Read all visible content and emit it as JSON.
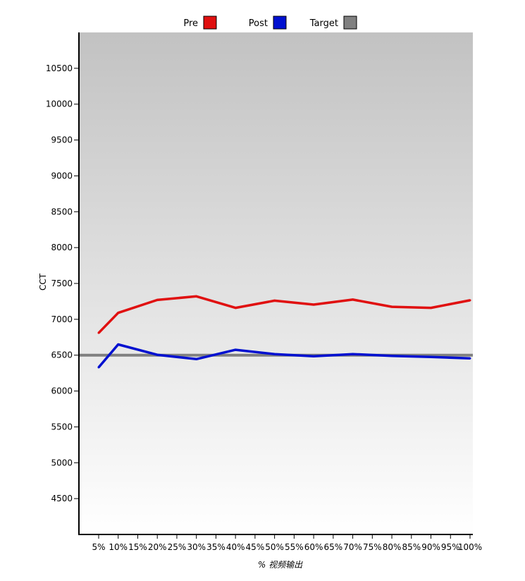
{
  "chart_data": {
    "type": "line",
    "xlabel": "% 视频输出",
    "ylabel": "CCT",
    "ylim": [
      4000,
      11000
    ],
    "yticks": [
      4500,
      5000,
      5500,
      6000,
      6500,
      7000,
      7500,
      8000,
      8500,
      9000,
      9500,
      10000,
      10500
    ],
    "x_categories": [
      "5%",
      "10%",
      "15%",
      "20%",
      "25%",
      "30%",
      "35%",
      "40%",
      "45%",
      "50%",
      "55%",
      "60%",
      "65%",
      "70%",
      "75%",
      "80%",
      "85%",
      "90%",
      "95%",
      "100%"
    ],
    "legend_position": "top",
    "series": [
      {
        "name": "Pre",
        "color": "#e01010",
        "points": [
          {
            "x": "5%",
            "y": 6810
          },
          {
            "x": "10%",
            "y": 7090
          },
          {
            "x": "20%",
            "y": 7270
          },
          {
            "x": "30%",
            "y": 7320
          },
          {
            "x": "40%",
            "y": 7160
          },
          {
            "x": "50%",
            "y": 7260
          },
          {
            "x": "60%",
            "y": 7205
          },
          {
            "x": "70%",
            "y": 7275
          },
          {
            "x": "80%",
            "y": 7175
          },
          {
            "x": "90%",
            "y": 7160
          },
          {
            "x": "100%",
            "y": 7265
          }
        ]
      },
      {
        "name": "Post",
        "color": "#0010d0",
        "points": [
          {
            "x": "5%",
            "y": 6330
          },
          {
            "x": "10%",
            "y": 6650
          },
          {
            "x": "20%",
            "y": 6505
          },
          {
            "x": "30%",
            "y": 6445
          },
          {
            "x": "40%",
            "y": 6575
          },
          {
            "x": "50%",
            "y": 6515
          },
          {
            "x": "60%",
            "y": 6485
          },
          {
            "x": "70%",
            "y": 6515
          },
          {
            "x": "80%",
            "y": 6490
          },
          {
            "x": "90%",
            "y": 6475
          },
          {
            "x": "100%",
            "y": 6455
          }
        ]
      },
      {
        "name": "Target",
        "color": "#808080",
        "constant_y": 6500
      }
    ],
    "background_gradient": [
      "#c2c2c2",
      "#ffffff"
    ]
  }
}
